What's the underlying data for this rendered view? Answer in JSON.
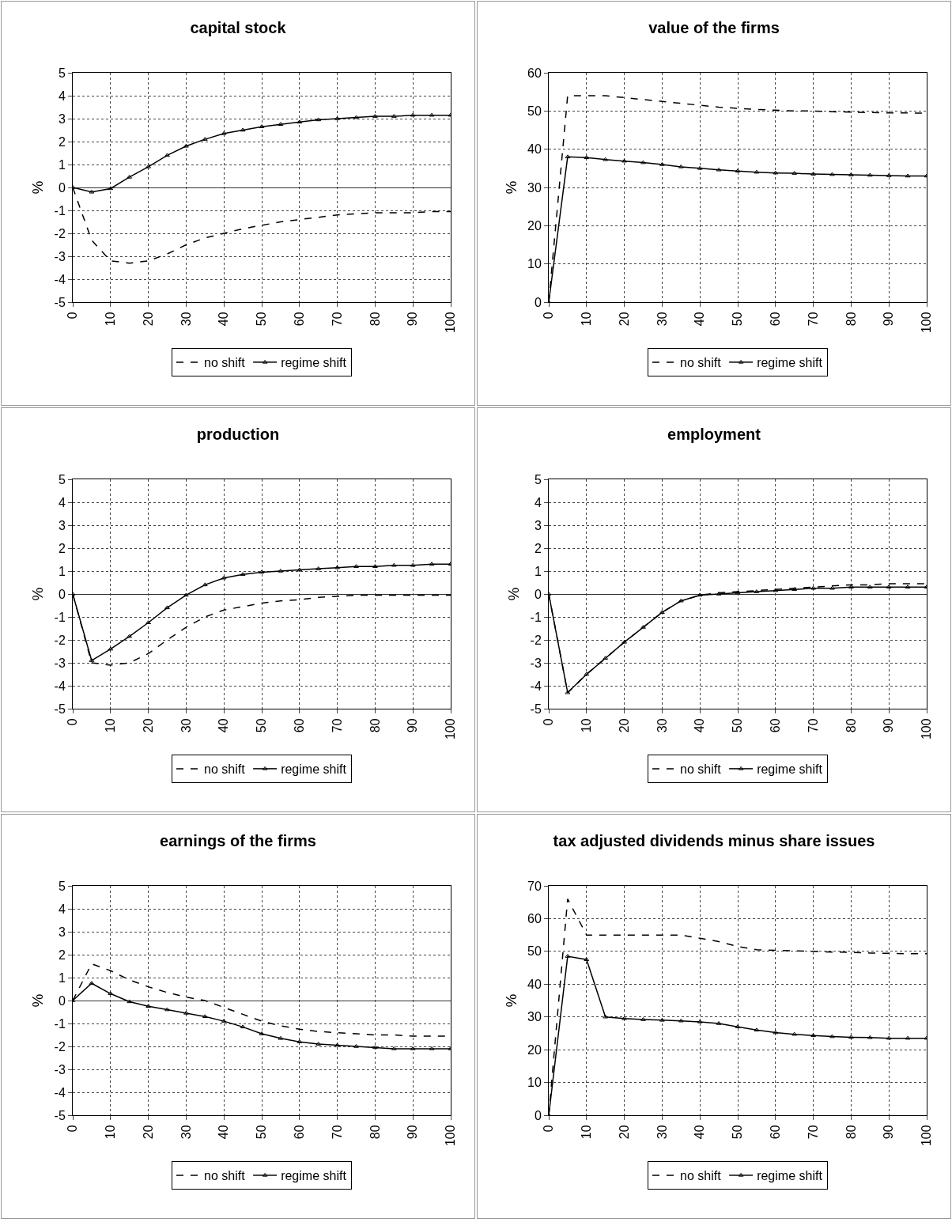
{
  "chart_data": [
    {
      "type": "line",
      "title": "capital stock",
      "ylabel": "%",
      "x": [
        0,
        5,
        10,
        15,
        20,
        25,
        30,
        35,
        40,
        45,
        50,
        55,
        60,
        65,
        70,
        75,
        80,
        85,
        90,
        95,
        100
      ],
      "xlim": [
        0,
        100
      ],
      "xticks": [
        0,
        10,
        20,
        30,
        40,
        50,
        60,
        70,
        80,
        90,
        100
      ],
      "ylim": [
        -5,
        5
      ],
      "yticks": [
        -5,
        -4,
        -3,
        -2,
        -1,
        0,
        1,
        2,
        3,
        4,
        5
      ],
      "grid": true,
      "legend": "bottom",
      "series": [
        {
          "name": "no shift",
          "color": "#000000",
          "line_style": "dashed",
          "marker": "none",
          "values": [
            0,
            -2.3,
            -3.2,
            -3.3,
            -3.2,
            -2.9,
            -2.5,
            -2.2,
            -2.0,
            -1.8,
            -1.65,
            -1.5,
            -1.4,
            -1.3,
            -1.2,
            -1.15,
            -1.1,
            -1.1,
            -1.1,
            -1.05,
            -1.05
          ]
        },
        {
          "name": "regime shift",
          "color": "#000000",
          "line_style": "solid",
          "marker": "triangle",
          "values": [
            0,
            -0.2,
            -0.05,
            0.45,
            0.9,
            1.4,
            1.8,
            2.1,
            2.35,
            2.5,
            2.65,
            2.75,
            2.85,
            2.95,
            3.0,
            3.05,
            3.1,
            3.1,
            3.15,
            3.15,
            3.15
          ]
        }
      ]
    },
    {
      "type": "line",
      "title": "value of the firms",
      "ylabel": "%",
      "x": [
        0,
        5,
        10,
        15,
        20,
        25,
        30,
        35,
        40,
        45,
        50,
        55,
        60,
        65,
        70,
        75,
        80,
        85,
        90,
        95,
        100
      ],
      "xlim": [
        0,
        100
      ],
      "xticks": [
        0,
        10,
        20,
        30,
        40,
        50,
        60,
        70,
        80,
        90,
        100
      ],
      "ylim": [
        0,
        60
      ],
      "yticks": [
        0,
        10,
        20,
        30,
        40,
        50,
        60
      ],
      "grid": true,
      "legend": "bottom",
      "series": [
        {
          "name": "no shift",
          "color": "#000000",
          "line_style": "dashed",
          "marker": "none",
          "values": [
            0,
            54,
            54,
            54,
            53.5,
            53,
            52.5,
            52,
            51.5,
            51,
            50.7,
            50.4,
            50.2,
            50,
            50,
            49.8,
            49.7,
            49.6,
            49.5,
            49.5,
            49.4
          ]
        },
        {
          "name": "regime shift",
          "color": "#000000",
          "line_style": "solid",
          "marker": "triangle",
          "values": [
            0,
            38,
            37.8,
            37.3,
            36.9,
            36.5,
            36,
            35.4,
            35,
            34.6,
            34.3,
            34,
            33.8,
            33.7,
            33.5,
            33.4,
            33.3,
            33.2,
            33.1,
            33,
            33
          ]
        }
      ]
    },
    {
      "type": "line",
      "title": "production",
      "ylabel": "%",
      "x": [
        0,
        5,
        10,
        15,
        20,
        25,
        30,
        35,
        40,
        45,
        50,
        55,
        60,
        65,
        70,
        75,
        80,
        85,
        90,
        95,
        100
      ],
      "xlim": [
        0,
        100
      ],
      "xticks": [
        0,
        10,
        20,
        30,
        40,
        50,
        60,
        70,
        80,
        90,
        100
      ],
      "ylim": [
        -5,
        5
      ],
      "yticks": [
        -5,
        -4,
        -3,
        -2,
        -1,
        0,
        1,
        2,
        3,
        4,
        5
      ],
      "grid": true,
      "legend": "bottom",
      "series": [
        {
          "name": "no shift",
          "color": "#000000",
          "line_style": "dashed",
          "marker": "none",
          "values": [
            0,
            -3.0,
            -3.1,
            -3.0,
            -2.6,
            -2.0,
            -1.45,
            -1.0,
            -0.7,
            -0.55,
            -0.4,
            -0.3,
            -0.25,
            -0.15,
            -0.1,
            -0.05,
            -0.05,
            -0.05,
            -0.05,
            -0.05,
            -0.05
          ]
        },
        {
          "name": "regime shift",
          "color": "#000000",
          "line_style": "solid",
          "marker": "triangle",
          "values": [
            0,
            -2.9,
            -2.4,
            -1.85,
            -1.25,
            -0.6,
            -0.05,
            0.4,
            0.7,
            0.85,
            0.95,
            1.0,
            1.05,
            1.1,
            1.15,
            1.2,
            1.2,
            1.25,
            1.25,
            1.3,
            1.3
          ]
        }
      ]
    },
    {
      "type": "line",
      "title": "employment",
      "ylabel": "%",
      "x": [
        0,
        5,
        10,
        15,
        20,
        25,
        30,
        35,
        40,
        45,
        50,
        55,
        60,
        65,
        70,
        75,
        80,
        85,
        90,
        95,
        100
      ],
      "xlim": [
        0,
        100
      ],
      "xticks": [
        0,
        10,
        20,
        30,
        40,
        50,
        60,
        70,
        80,
        90,
        100
      ],
      "ylim": [
        -5,
        5
      ],
      "yticks": [
        -5,
        -4,
        -3,
        -2,
        -1,
        0,
        1,
        2,
        3,
        4,
        5
      ],
      "grid": true,
      "legend": "bottom",
      "series": [
        {
          "name": "no shift",
          "color": "#000000",
          "line_style": "dashed",
          "marker": "none",
          "values": [
            0,
            -4.3,
            -3.5,
            -2.8,
            -2.1,
            -1.45,
            -0.8,
            -0.3,
            -0.05,
            0.05,
            0.1,
            0.15,
            0.2,
            0.25,
            0.3,
            0.35,
            0.4,
            0.4,
            0.45,
            0.45,
            0.45
          ]
        },
        {
          "name": "regime shift",
          "color": "#000000",
          "line_style": "solid",
          "marker": "triangle",
          "values": [
            0,
            -4.3,
            -3.5,
            -2.8,
            -2.1,
            -1.45,
            -0.8,
            -0.3,
            -0.05,
            0,
            0.05,
            0.1,
            0.15,
            0.2,
            0.25,
            0.25,
            0.3,
            0.3,
            0.3,
            0.3,
            0.3
          ]
        }
      ]
    },
    {
      "type": "line",
      "title": "earnings of the firms",
      "ylabel": "%",
      "x": [
        0,
        5,
        10,
        15,
        20,
        25,
        30,
        35,
        40,
        45,
        50,
        55,
        60,
        65,
        70,
        75,
        80,
        85,
        90,
        95,
        100
      ],
      "xlim": [
        0,
        100
      ],
      "xticks": [
        0,
        10,
        20,
        30,
        40,
        50,
        60,
        70,
        80,
        90,
        100
      ],
      "ylim": [
        -5,
        5
      ],
      "yticks": [
        -5,
        -4,
        -3,
        -2,
        -1,
        0,
        1,
        2,
        3,
        4,
        5
      ],
      "grid": true,
      "legend": "bottom",
      "series": [
        {
          "name": "no shift",
          "color": "#000000",
          "line_style": "dashed",
          "marker": "none",
          "values": [
            0,
            1.6,
            1.3,
            0.9,
            0.6,
            0.35,
            0.15,
            0,
            -0.3,
            -0.6,
            -0.9,
            -1.1,
            -1.25,
            -1.35,
            -1.4,
            -1.45,
            -1.5,
            -1.5,
            -1.55,
            -1.55,
            -1.55
          ]
        },
        {
          "name": "regime shift",
          "color": "#000000",
          "line_style": "solid",
          "marker": "triangle",
          "values": [
            0,
            0.75,
            0.3,
            -0.05,
            -0.25,
            -0.4,
            -0.55,
            -0.7,
            -0.9,
            -1.15,
            -1.45,
            -1.65,
            -1.8,
            -1.9,
            -1.95,
            -2.0,
            -2.05,
            -2.1,
            -2.1,
            -2.1,
            -2.1
          ]
        }
      ]
    },
    {
      "type": "line",
      "title": "tax adjusted dividends minus share issues",
      "ylabel": "%",
      "x": [
        0,
        5,
        10,
        15,
        20,
        25,
        30,
        35,
        40,
        45,
        50,
        55,
        60,
        65,
        70,
        75,
        80,
        85,
        90,
        95,
        100
      ],
      "xlim": [
        0,
        100
      ],
      "xticks": [
        0,
        10,
        20,
        30,
        40,
        50,
        60,
        70,
        80,
        90,
        100
      ],
      "ylim": [
        0,
        70
      ],
      "yticks": [
        0,
        10,
        20,
        30,
        40,
        50,
        60,
        70
      ],
      "grid": true,
      "legend": "bottom",
      "series": [
        {
          "name": "no shift",
          "color": "#000000",
          "line_style": "dashed",
          "marker": "none",
          "values": [
            0,
            66,
            55,
            55,
            55,
            55,
            55,
            55,
            54,
            53,
            51.5,
            50.5,
            50.3,
            50.2,
            50,
            49.8,
            49.7,
            49.5,
            49.4,
            49.3,
            49.3
          ]
        },
        {
          "name": "regime shift",
          "color": "#000000",
          "line_style": "solid",
          "marker": "triangle",
          "values": [
            0,
            48.5,
            47.5,
            30,
            29.5,
            29.2,
            29,
            28.8,
            28.5,
            28,
            27,
            26,
            25.2,
            24.7,
            24.3,
            24,
            23.8,
            23.7,
            23.5,
            23.5,
            23.5
          ]
        }
      ]
    }
  ]
}
